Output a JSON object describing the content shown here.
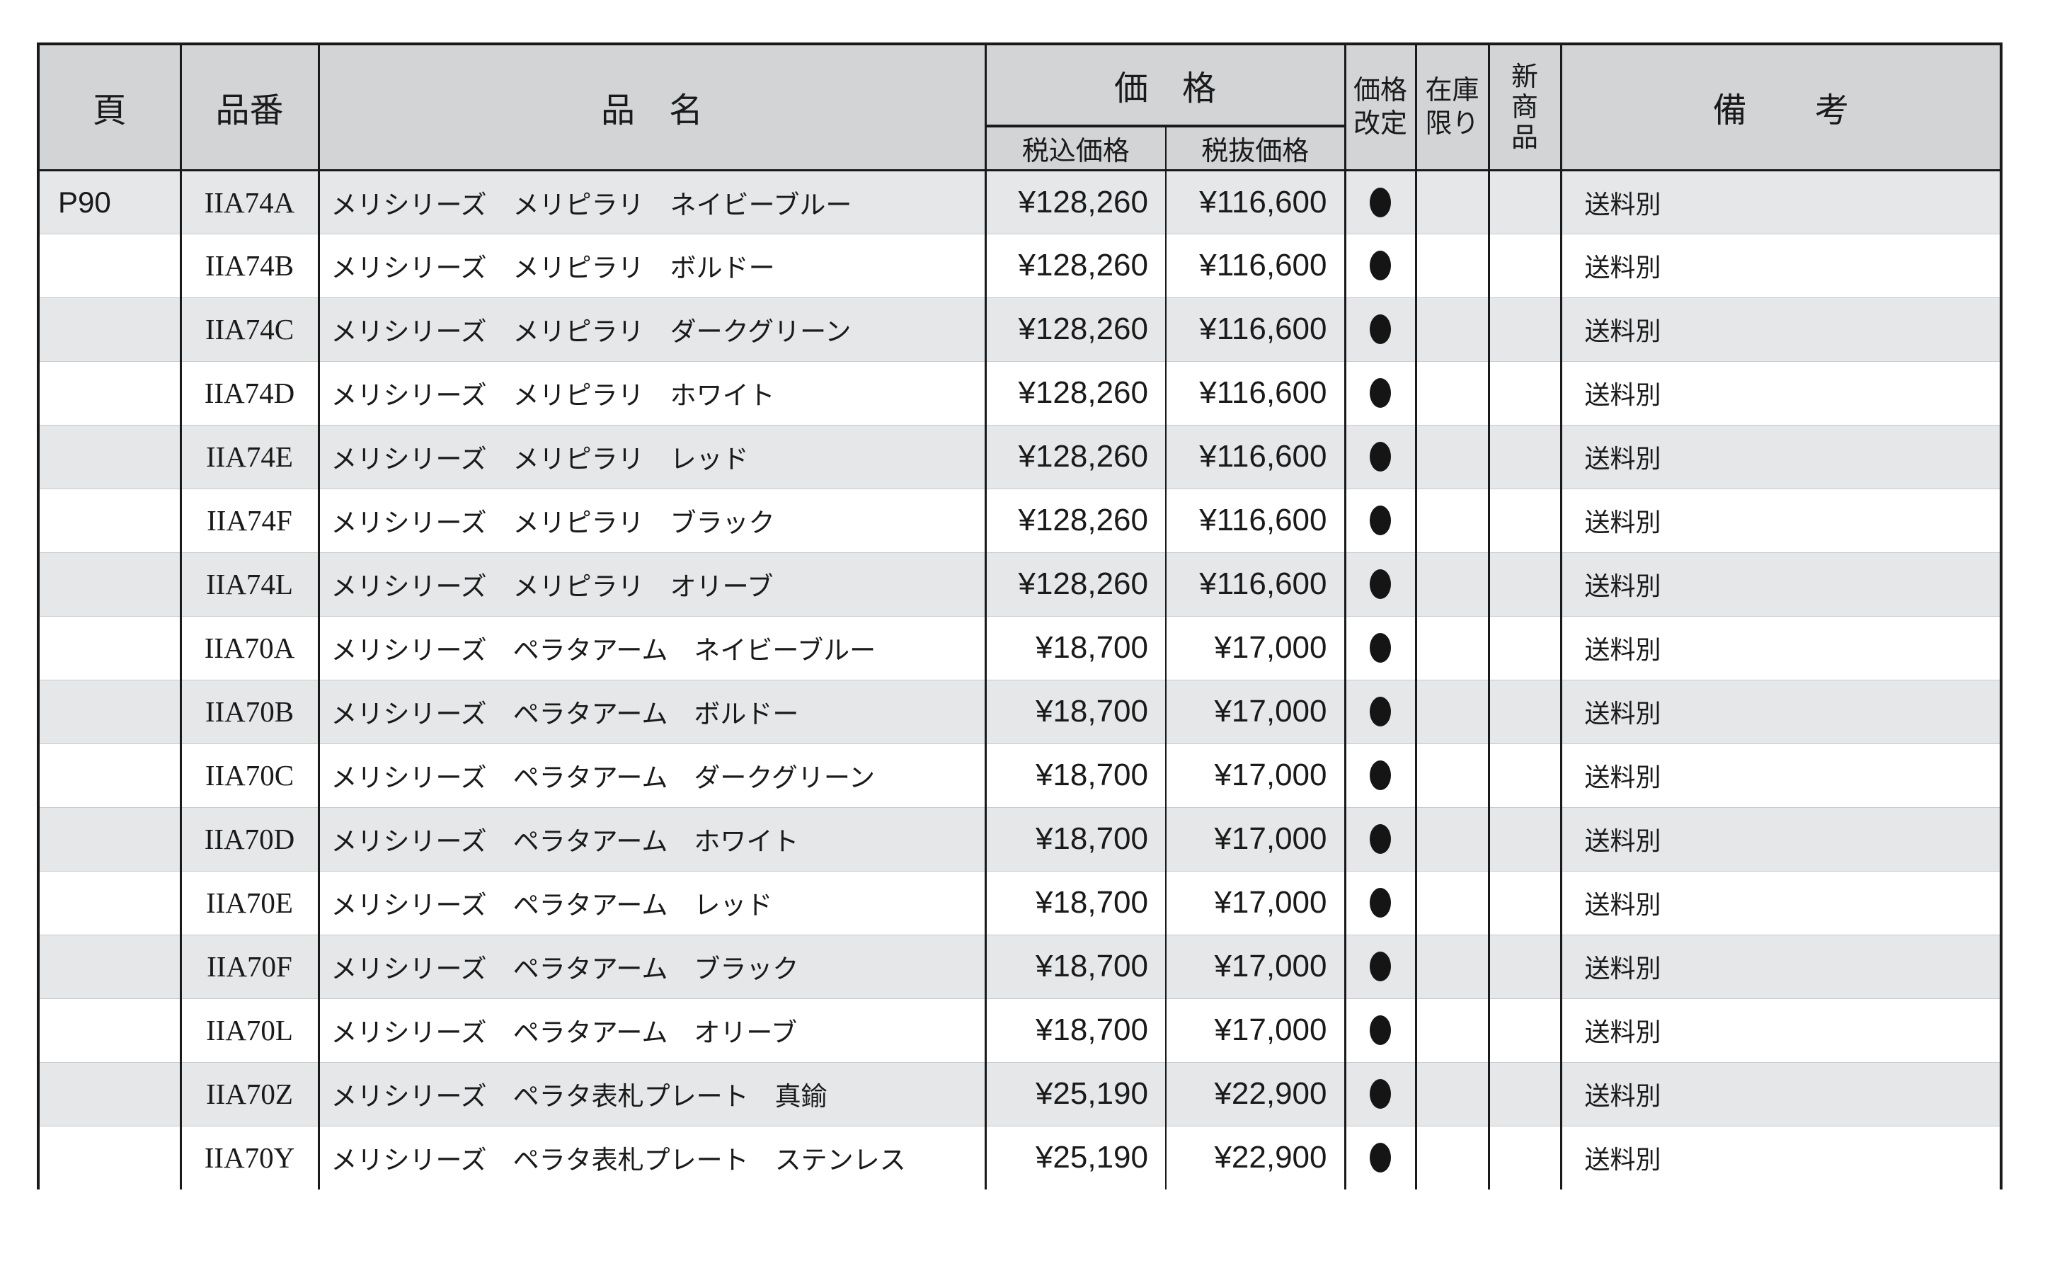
{
  "table": {
    "headers": {
      "page": "頁",
      "code": "品番",
      "name": "品　名",
      "price": "価　格",
      "price_incl_tax": "税込価格",
      "price_excl_tax": "税抜価格",
      "price_revision": "価格\n改定",
      "stock_limited": "在庫\n限り",
      "new_product": "新\n商\n品",
      "remarks": "備　　考"
    },
    "price_revised_marker": "●",
    "rows": [
      {
        "page": "P90",
        "code": "IIA74A",
        "name": "メリシリーズ　メリピラリ　ネイビーブルー",
        "tax_included": "¥128,260",
        "tax_excluded": "¥116,600",
        "price_revised": true,
        "stock_limited": false,
        "new_product": false,
        "remarks": "送料別"
      },
      {
        "page": "",
        "code": "IIA74B",
        "name": "メリシリーズ　メリピラリ　ボルドー",
        "tax_included": "¥128,260",
        "tax_excluded": "¥116,600",
        "price_revised": true,
        "stock_limited": false,
        "new_product": false,
        "remarks": "送料別"
      },
      {
        "page": "",
        "code": "IIA74C",
        "name": "メリシリーズ　メリピラリ　ダークグリーン",
        "tax_included": "¥128,260",
        "tax_excluded": "¥116,600",
        "price_revised": true,
        "stock_limited": false,
        "new_product": false,
        "remarks": "送料別"
      },
      {
        "page": "",
        "code": "IIA74D",
        "name": "メリシリーズ　メリピラリ　ホワイト",
        "tax_included": "¥128,260",
        "tax_excluded": "¥116,600",
        "price_revised": true,
        "stock_limited": false,
        "new_product": false,
        "remarks": "送料別"
      },
      {
        "page": "",
        "code": "IIA74E",
        "name": "メリシリーズ　メリピラリ　レッド",
        "tax_included": "¥128,260",
        "tax_excluded": "¥116,600",
        "price_revised": true,
        "stock_limited": false,
        "new_product": false,
        "remarks": "送料別"
      },
      {
        "page": "",
        "code": "IIA74F",
        "name": "メリシリーズ　メリピラリ　ブラック",
        "tax_included": "¥128,260",
        "tax_excluded": "¥116,600",
        "price_revised": true,
        "stock_limited": false,
        "new_product": false,
        "remarks": "送料別"
      },
      {
        "page": "",
        "code": "IIA74L",
        "name": "メリシリーズ　メリピラリ　オリーブ",
        "tax_included": "¥128,260",
        "tax_excluded": "¥116,600",
        "price_revised": true,
        "stock_limited": false,
        "new_product": false,
        "remarks": "送料別"
      },
      {
        "page": "",
        "code": "IIA70A",
        "name": "メリシリーズ　ペラタアーム　ネイビーブルー",
        "tax_included": "¥18,700",
        "tax_excluded": "¥17,000",
        "price_revised": true,
        "stock_limited": false,
        "new_product": false,
        "remarks": "送料別"
      },
      {
        "page": "",
        "code": "IIA70B",
        "name": "メリシリーズ　ペラタアーム　ボルドー",
        "tax_included": "¥18,700",
        "tax_excluded": "¥17,000",
        "price_revised": true,
        "stock_limited": false,
        "new_product": false,
        "remarks": "送料別"
      },
      {
        "page": "",
        "code": "IIA70C",
        "name": "メリシリーズ　ペラタアーム　ダークグリーン",
        "tax_included": "¥18,700",
        "tax_excluded": "¥17,000",
        "price_revised": true,
        "stock_limited": false,
        "new_product": false,
        "remarks": "送料別"
      },
      {
        "page": "",
        "code": "IIA70D",
        "name": "メリシリーズ　ペラタアーム　ホワイト",
        "tax_included": "¥18,700",
        "tax_excluded": "¥17,000",
        "price_revised": true,
        "stock_limited": false,
        "new_product": false,
        "remarks": "送料別"
      },
      {
        "page": "",
        "code": "IIA70E",
        "name": "メリシリーズ　ペラタアーム　レッド",
        "tax_included": "¥18,700",
        "tax_excluded": "¥17,000",
        "price_revised": true,
        "stock_limited": false,
        "new_product": false,
        "remarks": "送料別"
      },
      {
        "page": "",
        "code": "IIA70F",
        "name": "メリシリーズ　ペラタアーム　ブラック",
        "tax_included": "¥18,700",
        "tax_excluded": "¥17,000",
        "price_revised": true,
        "stock_limited": false,
        "new_product": false,
        "remarks": "送料別"
      },
      {
        "page": "",
        "code": "IIA70L",
        "name": "メリシリーズ　ペラタアーム　オリーブ",
        "tax_included": "¥18,700",
        "tax_excluded": "¥17,000",
        "price_revised": true,
        "stock_limited": false,
        "new_product": false,
        "remarks": "送料別"
      },
      {
        "page": "",
        "code": "IIA70Z",
        "name": "メリシリーズ　ペラタ表札プレート　真鍮",
        "tax_included": "¥25,190",
        "tax_excluded": "¥22,900",
        "price_revised": true,
        "stock_limited": false,
        "new_product": false,
        "remarks": "送料別"
      },
      {
        "page": "",
        "code": "IIA70Y",
        "name": "メリシリーズ　ペラタ表札プレート　ステンレス",
        "tax_included": "¥25,190",
        "tax_excluded": "¥22,900",
        "price_revised": true,
        "stock_limited": false,
        "new_product": false,
        "remarks": "送料別"
      }
    ]
  },
  "colors": {
    "header_background": "#d3d4d6",
    "stripe_gray": "#e6e7e8",
    "stripe_white": "#ffffff",
    "border": "#1a1a1a",
    "text": "#1a1a1a",
    "dot": "#151515"
  }
}
